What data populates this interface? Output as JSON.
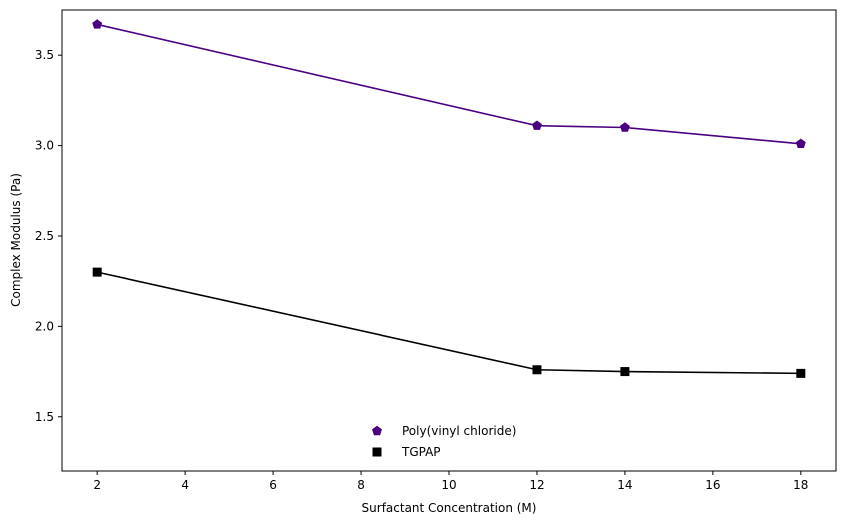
{
  "chart_data": {
    "type": "line",
    "title": "",
    "xlabel": "Surfactant Concentration (M)",
    "ylabel": "Complex Modulus (Pa)",
    "xlim": [
      1.2,
      18.8
    ],
    "ylim": [
      1.2,
      3.75
    ],
    "xticks": [
      "2",
      "4",
      "6",
      "8",
      "10",
      "12",
      "14",
      "16",
      "18"
    ],
    "yticks": [
      "1.5",
      "2.0",
      "2.5",
      "3.0",
      "3.5"
    ],
    "grid": false,
    "legend_position": "lower center",
    "x": [
      2,
      12,
      14,
      18
    ],
    "series": [
      {
        "name": "Poly(vinyl chloride)",
        "values": [
          3.67,
          3.11,
          3.1,
          3.01
        ],
        "color": "#4b0082",
        "marker": "pentagon"
      },
      {
        "name": "TGPAP",
        "values": [
          2.3,
          1.76,
          1.75,
          1.74
        ],
        "color": "#000000",
        "marker": "square"
      }
    ]
  }
}
